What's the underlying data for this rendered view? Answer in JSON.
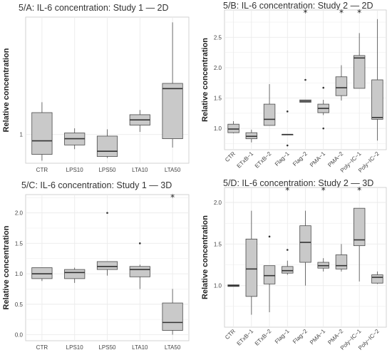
{
  "chart_data": [
    {
      "type": "box",
      "title": "5/A: IL-6 concentration: Study 1 — 2D",
      "xlabel": "",
      "ylabel": "Relative concentration",
      "ylim": [
        0.45,
        3.25
      ],
      "yticks": [
        {
          "value": 1,
          "label": "1"
        }
      ],
      "xtick_rotation": 0,
      "grid": true,
      "categories": [
        "CTR",
        "LPS10",
        "LPS50",
        "LTA10",
        "LTA50"
      ],
      "boxes": [
        {
          "min": 0.5,
          "q1": 0.62,
          "median": 0.88,
          "q3": 1.42,
          "max": 1.62,
          "outliers": [],
          "significant": false
        },
        {
          "min": 0.72,
          "q1": 0.8,
          "median": 0.92,
          "q3": 1.03,
          "max": 1.12,
          "outliers": [],
          "significant": false
        },
        {
          "min": 0.55,
          "q1": 0.58,
          "median": 0.68,
          "q3": 0.97,
          "max": 1.1,
          "outliers": [],
          "significant": false
        },
        {
          "min": 1.05,
          "q1": 1.18,
          "median": 1.28,
          "q3": 1.38,
          "max": 1.47,
          "outliers": [],
          "significant": false
        },
        {
          "min": 0.75,
          "q1": 0.92,
          "median": 1.88,
          "q3": 1.98,
          "max": 3.15,
          "outliers": [],
          "significant": false
        }
      ]
    },
    {
      "type": "box",
      "title": "5/B: IL-6 concentration: Study 2 — 2D",
      "xlabel": "",
      "ylabel": "Relative concentration",
      "ylim": [
        0.65,
        2.95
      ],
      "yticks": [
        {
          "value": 1.0,
          "label": "1.0"
        },
        {
          "value": 1.5,
          "label": "1.5"
        },
        {
          "value": 2.0,
          "label": "2.0"
        },
        {
          "value": 2.5,
          "label": "2.5"
        }
      ],
      "xtick_rotation": -45,
      "grid": true,
      "categories": [
        "CTR",
        "ETxB−1",
        "ETxB−2",
        "Flag−1",
        "Flag−2",
        "PMA−1",
        "PMA−2",
        "Poly−IC−1",
        "Poly−IC−2"
      ],
      "boxes": [
        {
          "min": 0.92,
          "q1": 0.93,
          "median": 0.99,
          "q3": 1.07,
          "max": 1.12,
          "outliers": [],
          "significant": false
        },
        {
          "min": 0.77,
          "q1": 0.83,
          "median": 0.87,
          "q3": 0.93,
          "max": 0.98,
          "outliers": [],
          "significant": false
        },
        {
          "min": 1.05,
          "q1": 1.05,
          "median": 1.15,
          "q3": 1.4,
          "max": 1.73,
          "outliers": [],
          "significant": false
        },
        {
          "min": 0.9,
          "q1": 0.9,
          "median": 0.9,
          "q3": 0.9,
          "max": 0.9,
          "outliers": [
            0.72,
            1.28
          ],
          "significant": false
        },
        {
          "min": 1.43,
          "q1": 1.43,
          "median": 1.45,
          "q3": 1.47,
          "max": 1.47,
          "outliers": [
            1.8
          ],
          "significant": true
        },
        {
          "min": 1.22,
          "q1": 1.26,
          "median": 1.33,
          "q3": 1.4,
          "max": 1.47,
          "outliers": [
            1.0,
            1.67
          ],
          "significant": false
        },
        {
          "min": 1.46,
          "q1": 1.54,
          "median": 1.67,
          "q3": 1.85,
          "max": 2.04,
          "outliers": [],
          "significant": true
        },
        {
          "min": 1.66,
          "q1": 1.66,
          "median": 2.16,
          "q3": 2.2,
          "max": 2.57,
          "outliers": [],
          "significant": true
        },
        {
          "min": 0.8,
          "q1": 1.15,
          "median": 1.18,
          "q3": 1.8,
          "max": 2.8,
          "outliers": [],
          "significant": false
        }
      ]
    },
    {
      "type": "box",
      "title": "5/C: IL-6 concentration: Study 1 — 3D",
      "xlabel": "",
      "ylabel": "Relative concentration",
      "ylim": [
        -0.1,
        2.3
      ],
      "yticks": [
        {
          "value": 0.0,
          "label": "0.0"
        },
        {
          "value": 0.5,
          "label": "0.5"
        },
        {
          "value": 1.0,
          "label": "1.0"
        },
        {
          "value": 1.5,
          "label": "1.5"
        },
        {
          "value": 2.0,
          "label": "2.0"
        }
      ],
      "xtick_rotation": 0,
      "grid": true,
      "categories": [
        "CTR",
        "LPS10",
        "LPS50",
        "LTA10",
        "LTA50"
      ],
      "boxes": [
        {
          "min": 0.88,
          "q1": 0.92,
          "median": 1.0,
          "q3": 1.1,
          "max": 1.1,
          "outliers": [],
          "significant": false
        },
        {
          "min": 0.85,
          "q1": 0.92,
          "median": 1.02,
          "q3": 1.07,
          "max": 1.1,
          "outliers": [],
          "significant": false
        },
        {
          "min": 0.97,
          "q1": 1.07,
          "median": 1.12,
          "q3": 1.2,
          "max": 1.2,
          "outliers": [
            2.0
          ],
          "significant": false
        },
        {
          "min": 0.75,
          "q1": 0.95,
          "median": 1.07,
          "q3": 1.12,
          "max": 1.15,
          "outliers": [
            1.5
          ],
          "significant": false
        },
        {
          "min": 0.0,
          "q1": 0.07,
          "median": 0.2,
          "q3": 0.52,
          "max": 0.75,
          "outliers": [],
          "significant": true
        }
      ]
    },
    {
      "type": "box",
      "title": "5/D: IL-6 concentration: Study 2 — 3D",
      "xlabel": "",
      "ylabel": "Relative concentration",
      "ylim": [
        0.5,
        2.18
      ],
      "yticks": [
        {
          "value": 1.0,
          "label": "1.0"
        },
        {
          "value": 1.5,
          "label": "1.5"
        },
        {
          "value": 2.0,
          "label": "2.0"
        }
      ],
      "xtick_rotation": -45,
      "grid": true,
      "categories": [
        "CTR",
        "ETxB−1",
        "ETxB−2",
        "Flag−1",
        "Flag−2",
        "PMA−1",
        "PMA−2",
        "Poly−IC−1",
        "Poly−IC−2"
      ],
      "boxes": [
        {
          "min": 0.99,
          "q1": 0.99,
          "median": 1.0,
          "q3": 1.01,
          "max": 1.01,
          "outliers": [],
          "significant": false
        },
        {
          "min": 0.65,
          "q1": 0.87,
          "median": 1.2,
          "q3": 1.56,
          "max": 1.9,
          "outliers": [],
          "significant": false
        },
        {
          "min": 0.68,
          "q1": 1.02,
          "median": 1.12,
          "q3": 1.24,
          "max": 1.24,
          "outliers": [
            1.59
          ],
          "significant": false
        },
        {
          "min": 1.13,
          "q1": 1.15,
          "median": 1.18,
          "q3": 1.23,
          "max": 1.3,
          "outliers": [
            1.43
          ],
          "significant": true
        },
        {
          "min": 1.0,
          "q1": 1.28,
          "median": 1.52,
          "q3": 1.72,
          "max": 1.9,
          "outliers": [],
          "significant": false
        },
        {
          "min": 1.17,
          "q1": 1.21,
          "median": 1.24,
          "q3": 1.28,
          "max": 1.33,
          "outliers": [],
          "significant": true
        },
        {
          "min": 1.17,
          "q1": 1.2,
          "median": 1.24,
          "q3": 1.37,
          "max": 1.5,
          "outliers": [],
          "significant": false
        },
        {
          "min": 1.05,
          "q1": 1.48,
          "median": 1.55,
          "q3": 1.93,
          "max": 1.93,
          "outliers": [],
          "significant": true
        },
        {
          "min": 1.02,
          "q1": 1.03,
          "median": 1.1,
          "q3": 1.13,
          "max": 1.17,
          "outliers": [],
          "significant": false
        }
      ]
    }
  ],
  "colors": {
    "box_fill": "#c9c9c9",
    "box_stroke": "#4a4a4a",
    "grid": "#ebebeb",
    "median": "#333333",
    "outlier": "#333333",
    "frame": "#c8c8c8"
  }
}
